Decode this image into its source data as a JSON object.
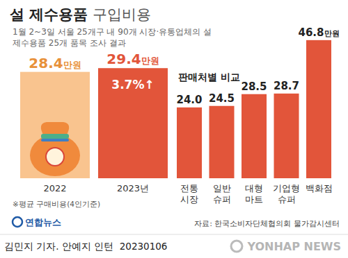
{
  "chart_data": [
    {
      "type": "bar",
      "title": "설 제수용품 구입비용",
      "subtitle": "1월 2~3일 서울 25개구 내 90개 시장·유통업체의 설 제수용품 25개 품목 조사 결과",
      "categories": [
        "2022",
        "2023년"
      ],
      "values": [
        28.4,
        29.4
      ],
      "value_labels": [
        "28.4만원",
        "29.4만원"
      ],
      "colors": [
        "#f9c48f",
        "#e2553a"
      ],
      "ylim": [
        0,
        30
      ],
      "tick_labels": "x",
      "data_labels": true,
      "annotations": [
        "3.7%↑"
      ],
      "note": "※평균 구매비용(4인기준)",
      "source": "자료: 한국소비자단체협의회 물가감시센터",
      "logo": "연합뉴스",
      "credit": "김민지 기자. 안예지 인턴  20230106",
      "watermark": "YONHAP NEWS"
    },
    {
      "type": "bar",
      "title": "판매처별 비교",
      "categories": [
        "전통 시장",
        "일반 슈퍼",
        "대형 마트",
        "기업형 슈퍼",
        "백화점"
      ],
      "values": [
        24.0,
        24.5,
        28.5,
        28.7,
        46.8
      ],
      "value_labels": [
        "24.0",
        "24.5",
        "28.5",
        "28.7",
        "46.8만원"
      ],
      "color": "#e2553a",
      "ylim": [
        0,
        47
      ],
      "tick_labels": "x",
      "data_labels": true
    }
  ]
}
